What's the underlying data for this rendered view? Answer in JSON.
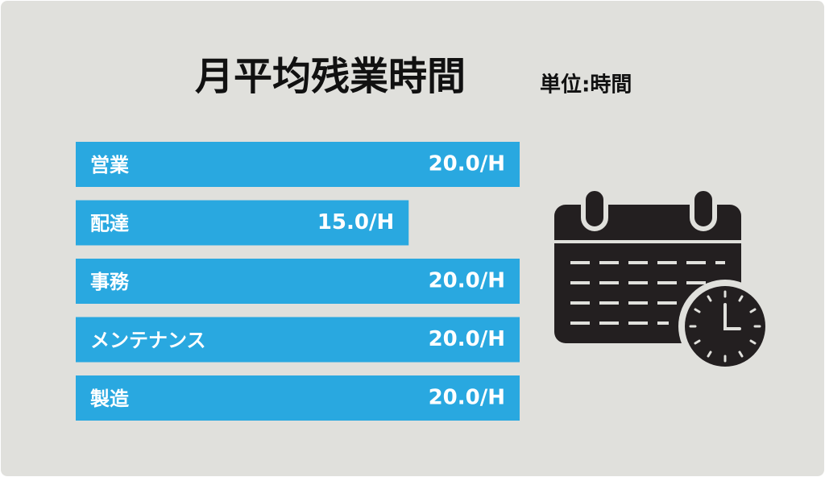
{
  "chart_data": {
    "type": "bar",
    "orientation": "horizontal",
    "title": "月平均残業時間",
    "subtitle": "単位:時間",
    "categories": [
      "営業",
      "配達",
      "事務",
      "メンテナンス",
      "製造"
    ],
    "values": [
      20,
      15,
      20,
      20,
      20
    ],
    "value_labels": [
      "20.0/H",
      "15.0/H",
      "20.0/H",
      "20.0/H",
      "20.0/H"
    ],
    "color": "#29a8e0"
  }
}
